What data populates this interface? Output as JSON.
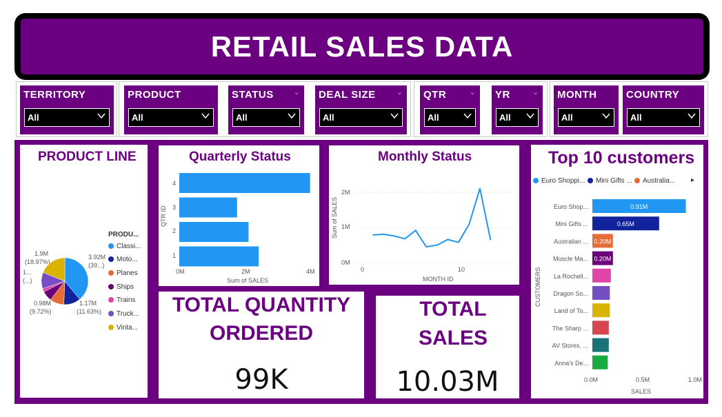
{
  "title": "RETAIL SALES DATA",
  "filters": [
    {
      "label": "TERRITORY",
      "value": "All"
    },
    {
      "label": "PRODUCT",
      "value": "All"
    },
    {
      "label": "STATUS",
      "value": "All"
    },
    {
      "label": "DEAL SIZE",
      "value": "All"
    },
    {
      "label": "QTR",
      "value": "All"
    },
    {
      "label": "YR",
      "value": "All"
    },
    {
      "label": "MONTH",
      "value": "All"
    },
    {
      "label": "COUNTRY",
      "value": "All"
    }
  ],
  "product_line": {
    "title": "PRODUCT LINE",
    "legend_title": "PRODU...",
    "legend": [
      {
        "name": "Classi...",
        "color": "#2196f3"
      },
      {
        "name": "Moto...",
        "color": "#12239e"
      },
      {
        "name": "Planes",
        "color": "#e66c37"
      },
      {
        "name": "Ships",
        "color": "#6b007b"
      },
      {
        "name": "Trains",
        "color": "#e044a7"
      },
      {
        "name": "Truck...",
        "color": "#744ec2"
      },
      {
        "name": "Vinta...",
        "color": "#d9b300"
      }
    ],
    "labels": {
      "top_right": "3.92M",
      "top_right_pct": "(39...)",
      "top_left": "1.9M",
      "top_left_pct": "(18.97%)",
      "left_mid": "1...",
      "left_mid_pct": "(...)",
      "bottom_left": "0.98M",
      "bottom_left_pct": "(9.72%)",
      "bottom_right": "1.17M",
      "bottom_right_pct": "(11.63%)"
    }
  },
  "quarterly": {
    "title": "Quarterly Status",
    "xlabel": "Sum of SALES",
    "ylabel": "QTR ID",
    "xticks": [
      "0M",
      "2M",
      "4M"
    ]
  },
  "monthly": {
    "title": "Monthly Status",
    "xlabel": "MONTH ID",
    "ylabel": "Sum of SALES",
    "xticks": [
      "0",
      "10"
    ],
    "yticks": [
      "0M",
      "1M",
      "2M"
    ]
  },
  "customers": {
    "title": "Top 10 customers",
    "legend": [
      {
        "name": "Euro Shoppi...",
        "color": "#2196f3"
      },
      {
        "name": "Mini Gifts ...",
        "color": "#12239e"
      },
      {
        "name": "Australia...",
        "color": "#e66c37"
      }
    ],
    "legend_more": "▸",
    "ylabel": "CUSTOMERS",
    "xlabel": "SALES",
    "xticks": [
      "0.0M",
      "0.5M",
      "1.0M"
    ]
  },
  "kpis": {
    "quantity_title_1": "TOTAL QUANTITY",
    "quantity_title_2": "ORDERED",
    "quantity_value": "99K",
    "sales_title_1": "TOTAL",
    "sales_title_2": "SALES",
    "sales_value": "10.03M"
  },
  "chart_data": [
    {
      "type": "pie",
      "title": "PRODUCT LINE",
      "categories": [
        "Classic Cars",
        "Motorcycles",
        "Planes",
        "Ships",
        "Trains",
        "Trucks and Buses",
        "Vintage Cars"
      ],
      "values": [
        3.92,
        1.17,
        0.98,
        0.71,
        0.23,
        1.13,
        1.9
      ],
      "colors": [
        "#2196f3",
        "#12239e",
        "#e66c37",
        "#6b007b",
        "#e044a7",
        "#744ec2",
        "#d9b300"
      ]
    },
    {
      "type": "bar",
      "title": "Quarterly Status",
      "categories": [
        "4",
        "3",
        "2",
        "1"
      ],
      "values": [
        3.87,
        1.71,
        2.05,
        2.35
      ],
      "xlabel": "Sum of SALES",
      "ylabel": "QTR ID",
      "xlim": [
        0,
        4
      ],
      "color": "#2196f3"
    },
    {
      "type": "line",
      "title": "Monthly Status",
      "x": [
        1,
        2,
        3,
        4,
        5,
        6,
        7,
        8,
        9,
        10,
        11,
        12
      ],
      "y": [
        0.79,
        0.81,
        0.76,
        0.68,
        0.92,
        0.45,
        0.5,
        0.66,
        0.58,
        1.1,
        2.12,
        0.64
      ],
      "xlabel": "MONTH ID",
      "ylabel": "Sum of SALES",
      "ylim": [
        0,
        2.5
      ],
      "xlim": [
        0,
        13
      ],
      "color": "#2196f3"
    },
    {
      "type": "bar",
      "title": "Top 10 customers",
      "categories": [
        "Euro Shop...",
        "Mini Gifts ...",
        "Australian ...",
        "Muscle Ma...",
        "La Rochell...",
        "Dragon So...",
        "Land of To...",
        "The Sharp ...",
        "AV Stores, ...",
        "Anna's De..."
      ],
      "values": [
        0.91,
        0.65,
        0.2,
        0.2,
        0.18,
        0.17,
        0.17,
        0.16,
        0.16,
        0.15
      ],
      "value_labels": [
        "0.91M",
        "0.65M",
        "0.20M",
        "0.20M",
        "",
        "",
        "",
        "",
        "",
        ""
      ],
      "colors": [
        "#2196f3",
        "#12239e",
        "#e66c37",
        "#6b007b",
        "#e044a7",
        "#744ec2",
        "#d9b300",
        "#d64550",
        "#197278",
        "#1aab40"
      ],
      "xlabel": "SALES",
      "ylabel": "CUSTOMERS",
      "xlim": [
        0,
        1.0
      ]
    }
  ]
}
